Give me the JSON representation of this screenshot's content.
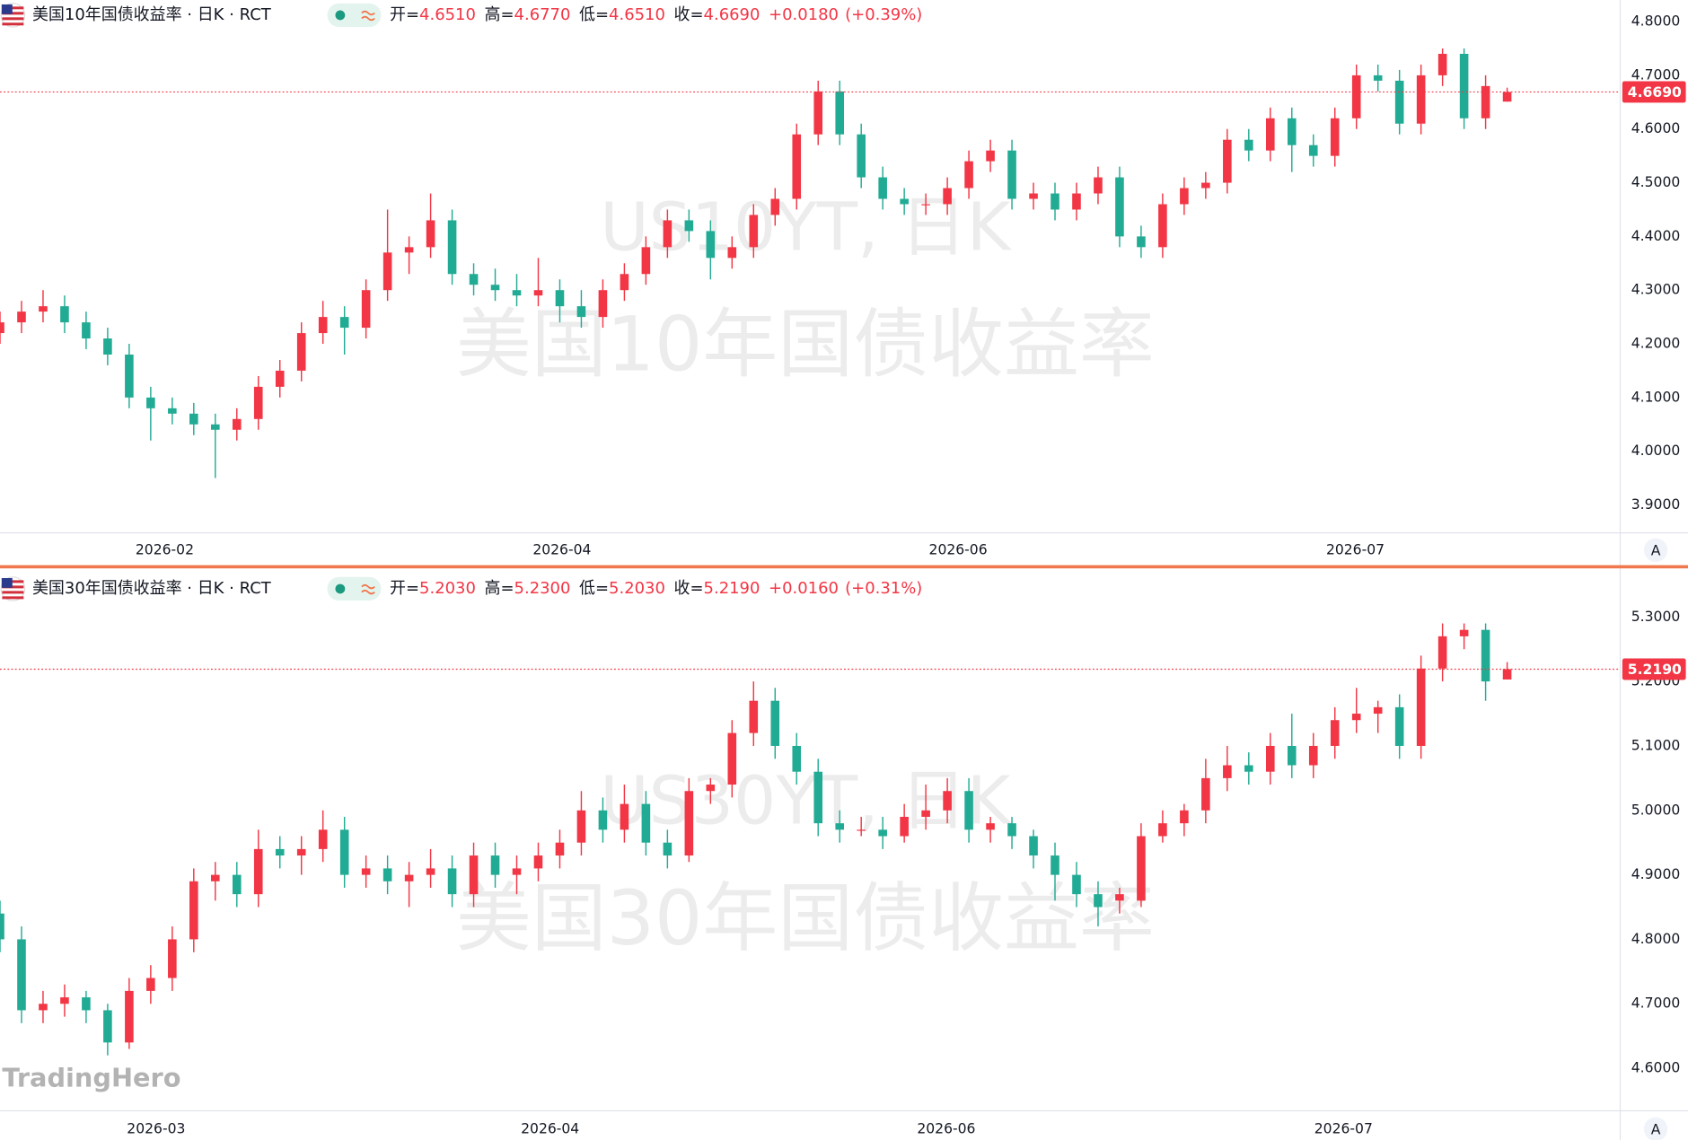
{
  "logo": "TradingHero",
  "chart_data": [
    {
      "type": "candlestick",
      "header": "美国10年国债收益率 · 日K · RCT",
      "ohlc_names": [
        "开=",
        "高=",
        "低=",
        "收="
      ],
      "ohlc_last": [
        {
          "value": 4.651,
          "label": "4.6510"
        },
        {
          "value": 4.677,
          "label": "4.6770"
        },
        {
          "value": 4.651,
          "label": "4.6510"
        },
        {
          "value": 4.669,
          "label": "4.6690"
        }
      ],
      "change": "+0.0180",
      "change_pct": "(+0.39%)",
      "watermark": [
        "US10YT, 日K",
        "美国10年国债收益率"
      ],
      "axis_button": "A",
      "up_color": "#f23645",
      "down_color": "#22ab94",
      "last": {
        "value": 4.669,
        "label": "4.6690"
      },
      "xlim": [
        0,
        75.25
      ],
      "xticks": [
        {
          "value": 7.65,
          "label": "2026-02"
        },
        {
          "value": 26.1,
          "label": "2026-04"
        },
        {
          "value": 44.5,
          "label": "2026-06"
        },
        {
          "value": 62.95,
          "label": "2026-07"
        }
      ],
      "ylim": [
        3.848,
        4.84
      ],
      "yticks": [
        {
          "value": 3.9,
          "label": "3.9000"
        },
        {
          "value": 4.0,
          "label": "4.0000"
        },
        {
          "value": 4.1,
          "label": "4.1000"
        },
        {
          "value": 4.2,
          "label": "4.2000"
        },
        {
          "value": 4.3,
          "label": "4.3000"
        },
        {
          "value": 4.4,
          "label": "4.4000"
        },
        {
          "value": 4.5,
          "label": "4.5000"
        },
        {
          "value": 4.6,
          "label": "4.6000"
        },
        {
          "value": 4.7,
          "label": "4.7000"
        },
        {
          "value": 4.8,
          "label": "4.8000"
        }
      ],
      "values": [
        [
          4.22,
          4.26,
          4.2,
          4.24
        ],
        [
          4.24,
          4.28,
          4.22,
          4.26
        ],
        [
          4.26,
          4.3,
          4.24,
          4.27
        ],
        [
          4.27,
          4.29,
          4.22,
          4.24
        ],
        [
          4.24,
          4.26,
          4.19,
          4.21
        ],
        [
          4.21,
          4.23,
          4.16,
          4.18
        ],
        [
          4.18,
          4.2,
          4.08,
          4.1
        ],
        [
          4.1,
          4.12,
          4.02,
          4.08
        ],
        [
          4.08,
          4.1,
          4.05,
          4.07
        ],
        [
          4.07,
          4.09,
          4.03,
          4.05
        ],
        [
          4.05,
          4.07,
          3.95,
          4.04
        ],
        [
          4.04,
          4.08,
          4.02,
          4.06
        ],
        [
          4.06,
          4.14,
          4.04,
          4.12
        ],
        [
          4.12,
          4.17,
          4.1,
          4.15
        ],
        [
          4.15,
          4.24,
          4.13,
          4.22
        ],
        [
          4.22,
          4.28,
          4.2,
          4.25
        ],
        [
          4.25,
          4.27,
          4.18,
          4.23
        ],
        [
          4.23,
          4.32,
          4.21,
          4.3
        ],
        [
          4.3,
          4.45,
          4.28,
          4.37
        ],
        [
          4.37,
          4.4,
          4.33,
          4.38
        ],
        [
          4.38,
          4.48,
          4.36,
          4.43
        ],
        [
          4.43,
          4.45,
          4.31,
          4.33
        ],
        [
          4.33,
          4.35,
          4.29,
          4.31
        ],
        [
          4.31,
          4.34,
          4.28,
          4.3
        ],
        [
          4.3,
          4.33,
          4.27,
          4.29
        ],
        [
          4.29,
          4.36,
          4.27,
          4.3
        ],
        [
          4.3,
          4.32,
          4.24,
          4.27
        ],
        [
          4.27,
          4.3,
          4.23,
          4.25
        ],
        [
          4.25,
          4.32,
          4.23,
          4.3
        ],
        [
          4.3,
          4.35,
          4.28,
          4.33
        ],
        [
          4.33,
          4.4,
          4.31,
          4.38
        ],
        [
          4.38,
          4.45,
          4.36,
          4.43
        ],
        [
          4.43,
          4.45,
          4.39,
          4.41
        ],
        [
          4.41,
          4.43,
          4.32,
          4.36
        ],
        [
          4.36,
          4.4,
          4.34,
          4.38
        ],
        [
          4.38,
          4.46,
          4.36,
          4.44
        ],
        [
          4.44,
          4.49,
          4.42,
          4.47
        ],
        [
          4.47,
          4.61,
          4.45,
          4.59
        ],
        [
          4.59,
          4.69,
          4.57,
          4.67
        ],
        [
          4.67,
          4.69,
          4.57,
          4.59
        ],
        [
          4.59,
          4.61,
          4.49,
          4.51
        ],
        [
          4.51,
          4.53,
          4.45,
          4.47
        ],
        [
          4.47,
          4.49,
          4.44,
          4.46
        ],
        [
          4.46,
          4.48,
          4.44,
          4.46
        ],
        [
          4.46,
          4.51,
          4.44,
          4.49
        ],
        [
          4.49,
          4.56,
          4.47,
          4.54
        ],
        [
          4.54,
          4.58,
          4.52,
          4.56
        ],
        [
          4.56,
          4.58,
          4.45,
          4.47
        ],
        [
          4.47,
          4.5,
          4.45,
          4.48
        ],
        [
          4.48,
          4.5,
          4.43,
          4.45
        ],
        [
          4.45,
          4.5,
          4.43,
          4.48
        ],
        [
          4.48,
          4.53,
          4.46,
          4.51
        ],
        [
          4.51,
          4.53,
          4.38,
          4.4
        ],
        [
          4.4,
          4.42,
          4.36,
          4.38
        ],
        [
          4.38,
          4.48,
          4.36,
          4.46
        ],
        [
          4.46,
          4.51,
          4.44,
          4.49
        ],
        [
          4.49,
          4.52,
          4.47,
          4.5
        ],
        [
          4.5,
          4.6,
          4.48,
          4.58
        ],
        [
          4.58,
          4.6,
          4.54,
          4.56
        ],
        [
          4.56,
          4.64,
          4.54,
          4.62
        ],
        [
          4.62,
          4.64,
          4.52,
          4.57
        ],
        [
          4.57,
          4.59,
          4.53,
          4.55
        ],
        [
          4.55,
          4.64,
          4.53,
          4.62
        ],
        [
          4.62,
          4.72,
          4.6,
          4.7
        ],
        [
          4.7,
          4.72,
          4.67,
          4.69
        ],
        [
          4.69,
          4.71,
          4.59,
          4.61
        ],
        [
          4.61,
          4.72,
          4.59,
          4.7
        ],
        [
          4.7,
          4.75,
          4.68,
          4.74
        ],
        [
          4.74,
          4.75,
          4.6,
          4.62
        ],
        [
          4.62,
          4.7,
          4.6,
          4.68
        ],
        [
          4.651,
          4.677,
          4.651,
          4.669
        ]
      ]
    },
    {
      "type": "candlestick",
      "header": "美国30年国债收益率 · 日K · RCT",
      "ohlc_names": [
        "开=",
        "高=",
        "低=",
        "收="
      ],
      "ohlc_last": [
        {
          "value": 5.203,
          "label": "5.2030"
        },
        {
          "value": 5.23,
          "label": "5.2300"
        },
        {
          "value": 5.203,
          "label": "5.2030"
        },
        {
          "value": 5.219,
          "label": "5.2190"
        }
      ],
      "change": "+0.0160",
      "change_pct": "(+0.31%)",
      "watermark": [
        "US30YT, 日K",
        "美国30年国债收益率"
      ],
      "axis_button": "A",
      "up_color": "#f23645",
      "down_color": "#22ab94",
      "last": {
        "value": 5.219,
        "label": "5.2190"
      },
      "xlim": [
        0,
        75.25
      ],
      "xticks": [
        {
          "value": 7.25,
          "label": "2026-03"
        },
        {
          "value": 25.55,
          "label": "2026-04"
        },
        {
          "value": 43.95,
          "label": "2026-06"
        },
        {
          "value": 62.4,
          "label": "2026-07"
        }
      ],
      "ylim": [
        4.534,
        5.367
      ],
      "yticks": [
        {
          "value": 4.6,
          "label": "4.6000"
        },
        {
          "value": 4.7,
          "label": "4.7000"
        },
        {
          "value": 4.8,
          "label": "4.8000"
        },
        {
          "value": 4.9,
          "label": "4.9000"
        },
        {
          "value": 5.0,
          "label": "5.0000"
        },
        {
          "value": 5.1,
          "label": "5.1000"
        },
        {
          "value": 5.2,
          "label": "5.2000"
        },
        {
          "value": 5.3,
          "label": "5.3000"
        }
      ],
      "values": [
        [
          4.84,
          4.86,
          4.78,
          4.8
        ],
        [
          4.8,
          4.82,
          4.67,
          4.69
        ],
        [
          4.69,
          4.72,
          4.67,
          4.7
        ],
        [
          4.7,
          4.73,
          4.68,
          4.71
        ],
        [
          4.71,
          4.72,
          4.67,
          4.69
        ],
        [
          4.69,
          4.7,
          4.62,
          4.64
        ],
        [
          4.64,
          4.74,
          4.63,
          4.72
        ],
        [
          4.72,
          4.76,
          4.7,
          4.74
        ],
        [
          4.74,
          4.82,
          4.72,
          4.8
        ],
        [
          4.8,
          4.91,
          4.78,
          4.89
        ],
        [
          4.89,
          4.92,
          4.86,
          4.9
        ],
        [
          4.9,
          4.92,
          4.85,
          4.87
        ],
        [
          4.87,
          4.97,
          4.85,
          4.94
        ],
        [
          4.94,
          4.96,
          4.91,
          4.93
        ],
        [
          4.93,
          4.96,
          4.9,
          4.94
        ],
        [
          4.94,
          5.0,
          4.92,
          4.97
        ],
        [
          4.97,
          4.99,
          4.88,
          4.9
        ],
        [
          4.9,
          4.93,
          4.88,
          4.91
        ],
        [
          4.91,
          4.93,
          4.87,
          4.89
        ],
        [
          4.89,
          4.92,
          4.85,
          4.9
        ],
        [
          4.9,
          4.94,
          4.88,
          4.91
        ],
        [
          4.91,
          4.93,
          4.85,
          4.87
        ],
        [
          4.87,
          4.95,
          4.85,
          4.93
        ],
        [
          4.93,
          4.95,
          4.88,
          4.9
        ],
        [
          4.9,
          4.93,
          4.87,
          4.91
        ],
        [
          4.91,
          4.95,
          4.89,
          4.93
        ],
        [
          4.93,
          4.97,
          4.91,
          4.95
        ],
        [
          4.95,
          5.03,
          4.93,
          5.0
        ],
        [
          5.0,
          5.02,
          4.95,
          4.97
        ],
        [
          4.97,
          5.04,
          4.95,
          5.01
        ],
        [
          5.01,
          5.03,
          4.93,
          4.95
        ],
        [
          4.95,
          4.97,
          4.91,
          4.93
        ],
        [
          4.93,
          5.05,
          4.92,
          5.03
        ],
        [
          5.03,
          5.05,
          5.01,
          5.04
        ],
        [
          5.04,
          5.14,
          5.02,
          5.12
        ],
        [
          5.12,
          5.2,
          5.1,
          5.17
        ],
        [
          5.17,
          5.19,
          5.08,
          5.1
        ],
        [
          5.1,
          5.12,
          5.04,
          5.06
        ],
        [
          5.06,
          5.08,
          4.96,
          4.98
        ],
        [
          4.98,
          5.0,
          4.95,
          4.97
        ],
        [
          4.97,
          4.99,
          4.96,
          4.97
        ],
        [
          4.97,
          4.99,
          4.94,
          4.96
        ],
        [
          4.96,
          5.01,
          4.95,
          4.99
        ],
        [
          4.99,
          5.04,
          4.97,
          5.0
        ],
        [
          5.0,
          5.05,
          4.98,
          5.03
        ],
        [
          5.03,
          5.05,
          4.95,
          4.97
        ],
        [
          4.97,
          4.99,
          4.95,
          4.98
        ],
        [
          4.98,
          4.99,
          4.94,
          4.96
        ],
        [
          4.96,
          4.97,
          4.91,
          4.93
        ],
        [
          4.93,
          4.95,
          4.86,
          4.9
        ],
        [
          4.9,
          4.92,
          4.85,
          4.87
        ],
        [
          4.87,
          4.89,
          4.82,
          4.85
        ],
        [
          4.86,
          4.88,
          4.84,
          4.87
        ],
        [
          4.86,
          4.98,
          4.85,
          4.96
        ],
        [
          4.96,
          5.0,
          4.95,
          4.98
        ],
        [
          4.98,
          5.01,
          4.96,
          5.0
        ],
        [
          5.0,
          5.08,
          4.98,
          5.05
        ],
        [
          5.05,
          5.1,
          5.03,
          5.07
        ],
        [
          5.07,
          5.09,
          5.04,
          5.06
        ],
        [
          5.06,
          5.12,
          5.04,
          5.1
        ],
        [
          5.1,
          5.15,
          5.05,
          5.07
        ],
        [
          5.07,
          5.12,
          5.05,
          5.1
        ],
        [
          5.1,
          5.16,
          5.08,
          5.14
        ],
        [
          5.14,
          5.19,
          5.12,
          5.15
        ],
        [
          5.15,
          5.17,
          5.12,
          5.16
        ],
        [
          5.16,
          5.18,
          5.08,
          5.1
        ],
        [
          5.1,
          5.24,
          5.08,
          5.22
        ],
        [
          5.22,
          5.29,
          5.2,
          5.27
        ],
        [
          5.27,
          5.29,
          5.25,
          5.28
        ],
        [
          5.28,
          5.29,
          5.17,
          5.2
        ],
        [
          5.203,
          5.23,
          5.203,
          5.219
        ]
      ]
    }
  ]
}
